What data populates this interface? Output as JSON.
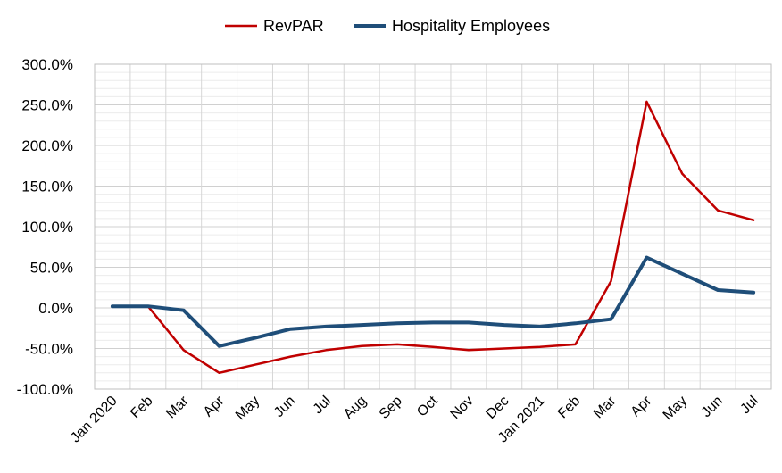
{
  "chart_data": {
    "type": "line",
    "categories": [
      "Jan 2020",
      "Feb",
      "Mar",
      "Apr",
      "May",
      "Jun",
      "Jul",
      "Aug",
      "Sep",
      "Oct",
      "Nov",
      "Dec",
      "Jan 2021",
      "Feb",
      "Mar",
      "Apr",
      "May",
      "Jun",
      "Jul"
    ],
    "series": [
      {
        "name": "RevPAR",
        "color": "#c00000",
        "values": [
          null,
          2,
          -52,
          -80,
          -70,
          -60,
          -52,
          -47,
          -45,
          -48,
          -52,
          -50,
          -48,
          -45,
          33,
          254,
          165,
          120,
          108
        ]
      },
      {
        "name": "Hospitality Employees",
        "color": "#1f4e79",
        "values": [
          2,
          2,
          -3,
          -47,
          -37,
          -26,
          -23,
          -21,
          -19,
          -18,
          -18,
          -21,
          -23,
          -19,
          -14,
          62,
          42,
          22,
          19
        ]
      }
    ],
    "ylim": [
      -100,
      300
    ],
    "y_ticks": [
      "-100.0%",
      "-50.0%",
      "0.0%",
      "50.0%",
      "100.0%",
      "150.0%",
      "200.0%",
      "250.0%",
      "300.0%"
    ],
    "legend_position": "top-center",
    "grid": true
  }
}
